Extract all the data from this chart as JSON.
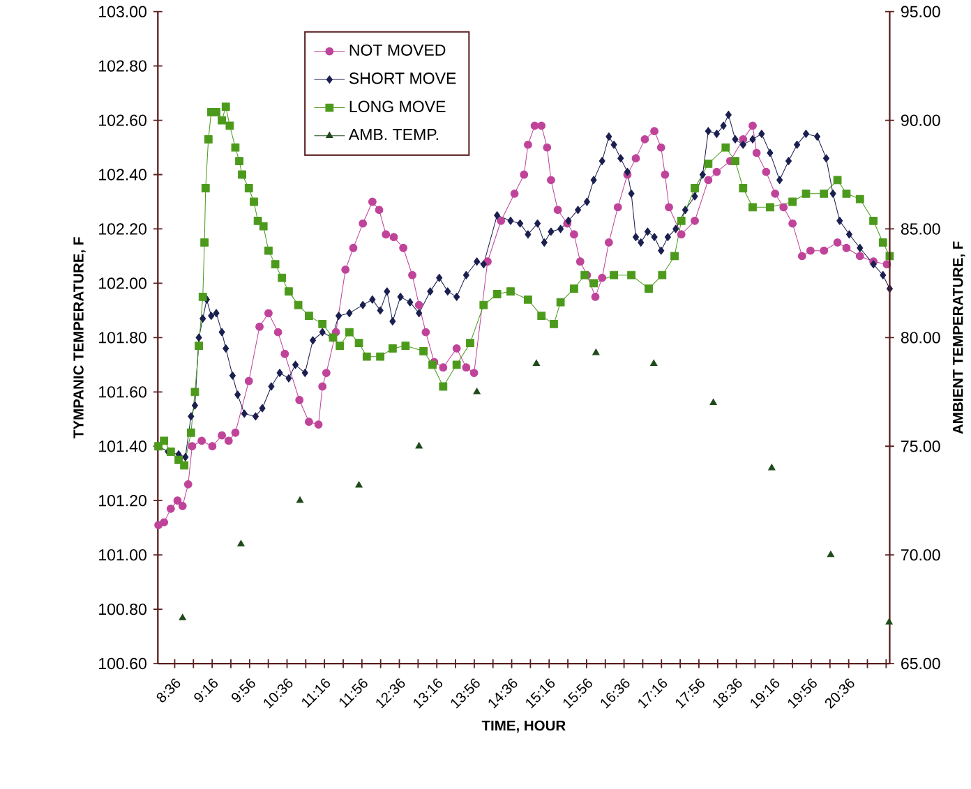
{
  "chart_data": {
    "type": "line",
    "xlabel": "TIME, HOUR",
    "ylabel": "TYMPANIC TEMPERATURE, F",
    "y2label": "AMBIENT TEMPERATURE, F",
    "xlim": [
      8.3,
      21.33
    ],
    "ylim": [
      100.6,
      103.0
    ],
    "y2lim": [
      65,
      95
    ],
    "xticks": [
      {
        "value": 8.6,
        "label": "8:36"
      },
      {
        "value": 8.9333,
        "label": null
      },
      {
        "value": 9.2667,
        "label": "9:16"
      },
      {
        "value": 9.6,
        "label": null
      },
      {
        "value": 9.9333,
        "label": "9:56"
      },
      {
        "value": 10.2667,
        "label": null
      },
      {
        "value": 10.6,
        "label": "10:36"
      },
      {
        "value": 10.9333,
        "label": null
      },
      {
        "value": 11.2667,
        "label": "11:16"
      },
      {
        "value": 11.6,
        "label": null
      },
      {
        "value": 11.9333,
        "label": "11:56"
      },
      {
        "value": 12.2667,
        "label": null
      },
      {
        "value": 12.6,
        "label": "12:36"
      },
      {
        "value": 12.9333,
        "label": null
      },
      {
        "value": 13.2667,
        "label": "13:16"
      },
      {
        "value": 13.6,
        "label": null
      },
      {
        "value": 13.9333,
        "label": "13:56"
      },
      {
        "value": 14.2667,
        "label": null
      },
      {
        "value": 14.6,
        "label": "14:36"
      },
      {
        "value": 14.9333,
        "label": null
      },
      {
        "value": 15.2667,
        "label": "15:16"
      },
      {
        "value": 15.6,
        "label": null
      },
      {
        "value": 15.9333,
        "label": "15:56"
      },
      {
        "value": 16.2667,
        "label": null
      },
      {
        "value": 16.6,
        "label": "16:36"
      },
      {
        "value": 16.9333,
        "label": null
      },
      {
        "value": 17.2667,
        "label": "17:16"
      },
      {
        "value": 17.6,
        "label": null
      },
      {
        "value": 17.9333,
        "label": "17:56"
      },
      {
        "value": 18.2667,
        "label": null
      },
      {
        "value": 18.6,
        "label": "18:36"
      },
      {
        "value": 18.9333,
        "label": null
      },
      {
        "value": 19.2667,
        "label": "19:16"
      },
      {
        "value": 19.6,
        "label": null
      },
      {
        "value": 19.9333,
        "label": "19:56"
      },
      {
        "value": 20.2667,
        "label": null
      },
      {
        "value": 20.6,
        "label": "20:36"
      },
      {
        "value": 20.9333,
        "label": null
      },
      {
        "value": 21.2667,
        "label": null
      }
    ],
    "yticks": [
      {
        "value": 100.6,
        "label": "100.60"
      },
      {
        "value": 100.8,
        "label": "100.80"
      },
      {
        "value": 101.0,
        "label": "101.00"
      },
      {
        "value": 101.2,
        "label": "101.20"
      },
      {
        "value": 101.4,
        "label": "101.40"
      },
      {
        "value": 101.6,
        "label": "101.60"
      },
      {
        "value": 101.8,
        "label": "101.80"
      },
      {
        "value": 102.0,
        "label": "102.00"
      },
      {
        "value": 102.2,
        "label": "102.20"
      },
      {
        "value": 102.4,
        "label": "102.40"
      },
      {
        "value": 102.6,
        "label": "102.60"
      },
      {
        "value": 102.8,
        "label": "102.80"
      },
      {
        "value": 103.0,
        "label": "103.00"
      }
    ],
    "y2ticks": [
      {
        "value": 65,
        "label": "65.00"
      },
      {
        "value": 70,
        "label": "70.00"
      },
      {
        "value": 75,
        "label": "75.00"
      },
      {
        "value": 80,
        "label": "80.00"
      },
      {
        "value": 85,
        "label": "85.00"
      },
      {
        "value": 90,
        "label": "90.00"
      },
      {
        "value": 95,
        "label": "95.00"
      }
    ],
    "grid": false,
    "legend": "top",
    "line_style": "solid",
    "series": [
      {
        "name": "NOT MOVED",
        "marker": "circle",
        "color": "#c0439a",
        "x": [
          8.31,
          8.41,
          8.53,
          8.65,
          8.74,
          8.84,
          8.91,
          9.08,
          9.27,
          9.44,
          9.56,
          9.68,
          9.92,
          10.11,
          10.27,
          10.44,
          10.56,
          10.82,
          10.99,
          11.16,
          11.23,
          11.3,
          11.47,
          11.64,
          11.78,
          11.95,
          12.12,
          12.24,
          12.36,
          12.5,
          12.67,
          12.83,
          12.95,
          13.07,
          13.22,
          13.38,
          13.62,
          13.79,
          13.93,
          14.17,
          14.41,
          14.65,
          14.82,
          14.89,
          15.01,
          15.13,
          15.23,
          15.3,
          15.42,
          15.59,
          15.71,
          15.82,
          15.94,
          16.09,
          16.21,
          16.33,
          16.49,
          16.66,
          16.81,
          16.97,
          17.14,
          17.26,
          17.33,
          17.4,
          17.62,
          17.86,
          18.1,
          18.25,
          18.49,
          18.72,
          18.89,
          18.96,
          19.13,
          19.29,
          19.44,
          19.6,
          19.77,
          19.92,
          20.16,
          20.4,
          20.56,
          20.8,
          21.04,
          21.28
        ],
        "values": [
          101.11,
          101.12,
          101.17,
          101.2,
          101.18,
          101.26,
          101.4,
          101.42,
          101.4,
          101.44,
          101.42,
          101.45,
          101.64,
          101.84,
          101.89,
          101.82,
          101.74,
          101.57,
          101.49,
          101.48,
          101.62,
          101.67,
          101.82,
          102.05,
          102.13,
          102.22,
          102.3,
          102.27,
          102.18,
          102.17,
          102.13,
          102.03,
          101.92,
          101.82,
          101.71,
          101.69,
          101.76,
          101.69,
          101.67,
          102.08,
          102.23,
          102.33,
          102.4,
          102.51,
          102.58,
          102.58,
          102.5,
          102.38,
          102.27,
          102.22,
          102.18,
          102.08,
          102.03,
          101.95,
          102.02,
          102.15,
          102.28,
          102.4,
          102.46,
          102.53,
          102.56,
          102.5,
          102.4,
          102.28,
          102.18,
          102.23,
          102.38,
          102.41,
          102.45,
          102.53,
          102.58,
          102.48,
          102.41,
          102.33,
          102.28,
          102.22,
          102.1,
          102.12,
          102.12,
          102.15,
          102.13,
          102.1,
          102.08,
          102.07
        ]
      },
      {
        "name": "SHORT MOVE",
        "marker": "diamond",
        "color": "#1a1f4f",
        "x": [
          8.31,
          8.48,
          8.67,
          8.79,
          8.89,
          8.96,
          9.03,
          9.1,
          9.17,
          9.25,
          9.34,
          9.44,
          9.51,
          9.63,
          9.72,
          9.84,
          10.04,
          10.16,
          10.32,
          10.47,
          10.63,
          10.75,
          10.92,
          11.06,
          11.23,
          11.4,
          11.52,
          11.71,
          11.95,
          12.12,
          12.26,
          12.38,
          12.48,
          12.62,
          12.79,
          12.95,
          13.15,
          13.31,
          13.46,
          13.62,
          13.79,
          13.98,
          14.1,
          14.34,
          14.58,
          14.75,
          14.89,
          15.06,
          15.18,
          15.3,
          15.47,
          15.61,
          15.78,
          15.94,
          16.06,
          16.21,
          16.33,
          16.42,
          16.54,
          16.66,
          16.73,
          16.81,
          16.9,
          17.02,
          17.14,
          17.26,
          17.38,
          17.52,
          17.69,
          17.86,
          18.0,
          18.1,
          18.25,
          18.37,
          18.46,
          18.58,
          18.72,
          18.89,
          19.05,
          19.2,
          19.37,
          19.53,
          19.68,
          19.84,
          20.04,
          20.2,
          20.32,
          20.44,
          20.61,
          20.8,
          21.04,
          21.21,
          21.33
        ],
        "values": [
          101.4,
          101.38,
          101.37,
          101.36,
          101.51,
          101.55,
          101.8,
          101.87,
          101.94,
          101.88,
          101.89,
          101.82,
          101.76,
          101.66,
          101.59,
          101.52,
          101.51,
          101.54,
          101.62,
          101.67,
          101.65,
          101.7,
          101.67,
          101.79,
          101.82,
          101.8,
          101.88,
          101.89,
          101.92,
          101.94,
          101.9,
          101.97,
          101.86,
          101.95,
          101.93,
          101.89,
          101.97,
          102.02,
          101.97,
          101.95,
          102.03,
          102.08,
          102.07,
          102.25,
          102.23,
          102.22,
          102.18,
          102.22,
          102.15,
          102.19,
          102.2,
          102.23,
          102.27,
          102.3,
          102.38,
          102.45,
          102.54,
          102.51,
          102.46,
          102.41,
          102.33,
          102.17,
          102.15,
          102.19,
          102.17,
          102.12,
          102.17,
          102.2,
          102.27,
          102.32,
          102.4,
          102.56,
          102.55,
          102.58,
          102.62,
          102.53,
          102.51,
          102.53,
          102.55,
          102.48,
          102.38,
          102.45,
          102.51,
          102.55,
          102.54,
          102.46,
          102.33,
          102.23,
          102.18,
          102.13,
          102.07,
          102.03,
          101.98
        ]
      },
      {
        "name": "LONG MOVE",
        "marker": "square",
        "color": "#4c9a1c",
        "x": [
          8.31,
          8.41,
          8.53,
          8.67,
          8.77,
          8.89,
          8.96,
          9.03,
          9.1,
          9.13,
          9.15,
          9.2,
          9.25,
          9.34,
          9.44,
          9.51,
          9.58,
          9.68,
          9.75,
          9.8,
          9.92,
          10.01,
          10.08,
          10.18,
          10.27,
          10.39,
          10.51,
          10.63,
          10.8,
          10.99,
          11.23,
          11.42,
          11.54,
          11.71,
          11.88,
          12.02,
          12.26,
          12.48,
          12.71,
          13.03,
          13.19,
          13.38,
          13.62,
          13.86,
          14.1,
          14.34,
          14.58,
          14.89,
          15.13,
          15.35,
          15.47,
          15.71,
          15.9,
          16.06,
          16.42,
          16.73,
          17.04,
          17.28,
          17.5,
          17.62,
          17.86,
          18.1,
          18.41,
          18.58,
          18.72,
          18.89,
          19.2,
          19.6,
          19.84,
          20.16,
          20.4,
          20.56,
          20.8,
          21.04,
          21.21,
          21.33
        ],
        "values": [
          101.4,
          101.42,
          101.38,
          101.35,
          101.33,
          101.45,
          101.6,
          101.77,
          101.95,
          102.15,
          102.35,
          102.53,
          102.63,
          102.63,
          102.6,
          102.65,
          102.58,
          102.5,
          102.45,
          102.4,
          102.35,
          102.3,
          102.23,
          102.21,
          102.12,
          102.07,
          102.02,
          101.97,
          101.92,
          101.88,
          101.85,
          101.8,
          101.77,
          101.82,
          101.78,
          101.73,
          101.73,
          101.76,
          101.77,
          101.75,
          101.7,
          101.62,
          101.7,
          101.78,
          101.92,
          101.96,
          101.97,
          101.94,
          101.88,
          101.85,
          101.93,
          101.98,
          102.03,
          102.0,
          102.03,
          102.03,
          101.98,
          102.03,
          102.1,
          102.23,
          102.35,
          102.44,
          102.5,
          102.45,
          102.35,
          102.28,
          102.28,
          102.3,
          102.33,
          102.33,
          102.38,
          102.33,
          102.31,
          102.23,
          102.15,
          102.1
        ]
      },
      {
        "name": "AMB. TEMP.",
        "type": "scatter",
        "axis": "y2",
        "marker": "triangle",
        "color": "#1f4a1a",
        "x": [
          8.74,
          9.78,
          10.83,
          11.88,
          12.95,
          13.98,
          15.04,
          16.1,
          17.13,
          18.19,
          19.23,
          20.28,
          21.32
        ],
        "values": [
          67.1,
          70.5,
          72.5,
          73.2,
          75.0,
          77.5,
          78.8,
          79.3,
          78.8,
          77.0,
          74.0,
          70.0,
          66.9
        ]
      }
    ]
  }
}
